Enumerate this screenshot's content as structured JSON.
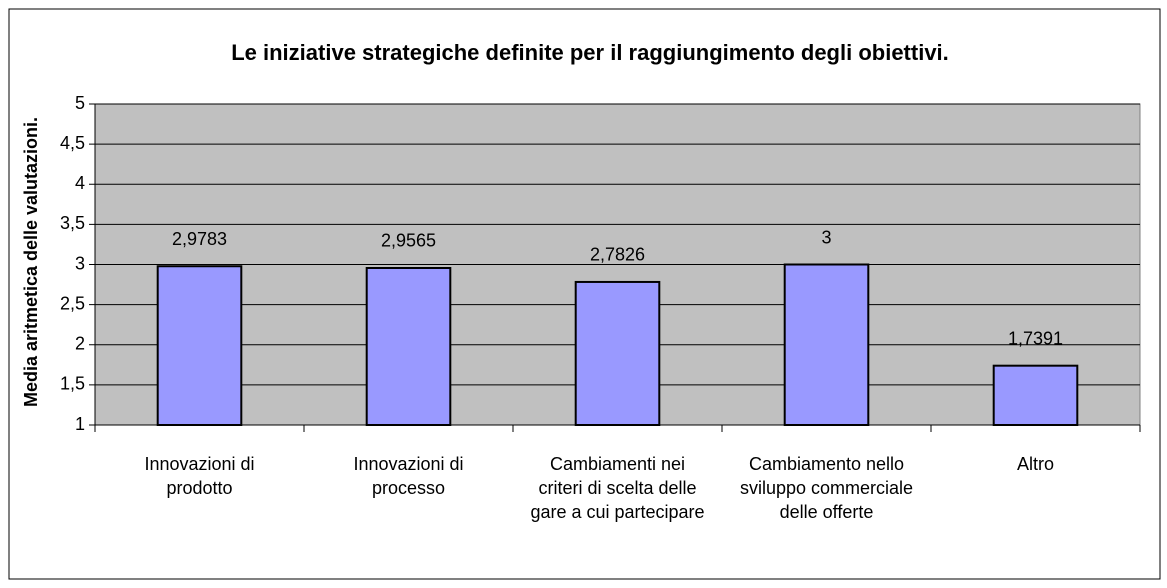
{
  "chart_data": {
    "type": "bar",
    "title": "Le iniziative strategiche definite per il raggiungimento degli obiettivi.",
    "ylabel": "Media aritmetica delle valutazioni.",
    "categories": [
      "Innovazioni di prodotto",
      "Innovazioni di processo",
      "Cambiamenti nei criteri di scelta delle gare a cui partecipare",
      "Cambiamento nello sviluppo commerciale delle offerte",
      "Altro"
    ],
    "values": [
      2.9783,
      2.9565,
      2.7826,
      3,
      1.7391
    ],
    "value_labels": [
      "2,9783",
      "2,9565",
      "2,7826",
      "3",
      "1,7391"
    ],
    "color": "#9999ff",
    "ylim": [
      1,
      5
    ],
    "yticks": [
      1,
      {
        "value": 1.5,
        "label": "1,5"
      },
      2,
      {
        "value": 2.5,
        "label": "2,5"
      },
      3,
      {
        "value": 3.5,
        "label": "3,5"
      },
      4,
      {
        "value": 4.5,
        "label": "4,5"
      },
      5
    ],
    "grid": true
  }
}
